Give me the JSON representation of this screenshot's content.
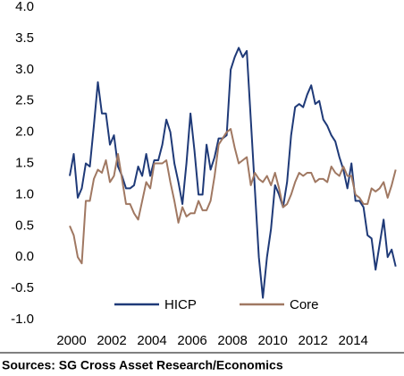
{
  "chart_data": {
    "type": "line",
    "source": "Sources: SG Cross Asset Research/Economics",
    "x": [
      2000,
      2000.2,
      2000.4,
      2000.6,
      2000.8,
      2001,
      2001.2,
      2001.4,
      2001.6,
      2001.8,
      2002,
      2002.2,
      2002.4,
      2002.6,
      2002.8,
      2003,
      2003.2,
      2003.4,
      2003.6,
      2003.8,
      2004,
      2004.2,
      2004.4,
      2004.6,
      2004.8,
      2005,
      2005.2,
      2005.4,
      2005.6,
      2005.8,
      2006,
      2006.2,
      2006.4,
      2006.6,
      2006.8,
      2007,
      2007.2,
      2007.4,
      2007.6,
      2007.8,
      2008,
      2008.2,
      2008.4,
      2008.6,
      2008.8,
      2009,
      2009.2,
      2009.4,
      2009.6,
      2009.8,
      2010,
      2010.2,
      2010.4,
      2010.6,
      2010.8,
      2011,
      2011.2,
      2011.4,
      2011.6,
      2011.8,
      2012,
      2012.2,
      2012.4,
      2012.6,
      2012.8,
      2013,
      2013.2,
      2013.4,
      2013.6,
      2013.8,
      2014,
      2014.2,
      2014.4,
      2014.6,
      2014.8,
      2015,
      2015.2,
      2015.4,
      2015.6,
      2015.8,
      2016,
      2016.2
    ],
    "series": [
      {
        "name": "HICP",
        "color": "#1f3a78",
        "values": [
          1.3,
          1.65,
          0.95,
          1.1,
          1.5,
          1.45,
          2.1,
          2.8,
          2.3,
          2.3,
          1.8,
          1.95,
          1.45,
          1.3,
          1.1,
          1.1,
          1.15,
          1.45,
          1.3,
          1.65,
          1.3,
          1.55,
          1.55,
          1.8,
          2.2,
          2.0,
          1.5,
          1.2,
          0.85,
          1.5,
          2.3,
          1.7,
          1.0,
          1.0,
          1.8,
          1.4,
          1.6,
          1.9,
          1.9,
          1.95,
          3.0,
          3.2,
          3.35,
          3.2,
          3.3,
          2.2,
          1.1,
          0.0,
          -0.65,
          0.0,
          0.45,
          1.15,
          1.0,
          0.8,
          1.2,
          1.95,
          2.4,
          2.45,
          2.4,
          2.6,
          2.75,
          2.45,
          2.5,
          2.2,
          2.1,
          1.95,
          1.85,
          1.6,
          1.4,
          1.1,
          1.5,
          0.9,
          0.9,
          0.8,
          0.35,
          0.3,
          -0.2,
          0.2,
          0.6,
          0.0,
          0.12,
          -0.15
        ]
      },
      {
        "name": "Core",
        "color": "#a07862",
        "values": [
          0.5,
          0.35,
          0.0,
          -0.1,
          0.9,
          0.9,
          1.25,
          1.4,
          1.35,
          1.55,
          1.2,
          1.3,
          1.65,
          1.25,
          0.85,
          0.85,
          0.7,
          0.6,
          0.9,
          1.2,
          1.1,
          1.5,
          1.5,
          1.5,
          1.55,
          1.2,
          0.9,
          0.55,
          0.8,
          0.65,
          0.7,
          0.7,
          0.9,
          0.75,
          0.75,
          0.9,
          1.3,
          1.8,
          1.9,
          2.0,
          2.05,
          1.75,
          1.5,
          1.55,
          1.6,
          1.15,
          1.35,
          1.25,
          1.2,
          1.3,
          1.15,
          1.35,
          1.1,
          0.8,
          0.85,
          1.0,
          1.2,
          1.35,
          1.3,
          1.35,
          1.35,
          1.2,
          1.25,
          1.25,
          1.2,
          1.45,
          1.35,
          1.3,
          1.45,
          1.3,
          1.3,
          1.0,
          0.95,
          0.85,
          0.85,
          1.1,
          1.05,
          1.1,
          1.2,
          0.95,
          1.15,
          1.4
        ]
      }
    ],
    "xlim": [
      2000,
      2016.3
    ],
    "xticks": [
      2000,
      2002,
      2004,
      2006,
      2008,
      2010,
      2012,
      2014
    ],
    "ylim": [
      -1,
      4
    ],
    "yticks": [
      {
        "value": -1,
        "label": "-1.0"
      },
      {
        "value": -0.5,
        "label": "-0.5"
      },
      {
        "value": 0,
        "label": "0.0"
      },
      {
        "value": 0.5,
        "label": "0.5"
      },
      {
        "value": 1,
        "label": "1.0"
      },
      {
        "value": 1.5,
        "label": "1.5"
      },
      {
        "value": 2,
        "label": "2.0"
      },
      {
        "value": 2.5,
        "label": "2.5"
      },
      {
        "value": 3,
        "label": "3.0"
      },
      {
        "value": 3.5,
        "label": "3.5"
      },
      {
        "value": 4,
        "label": "4.0"
      }
    ]
  }
}
